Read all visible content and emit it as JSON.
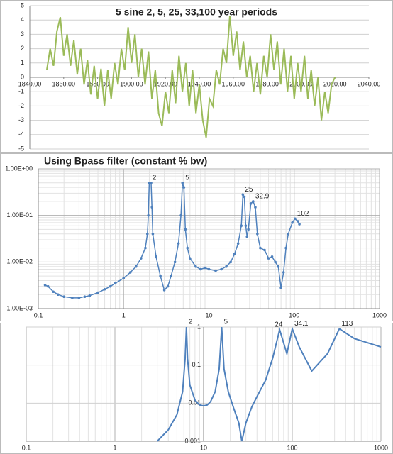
{
  "chart_data": [
    {
      "type": "line",
      "title": "5 sine 2, 5, 25, 33,100 year periods",
      "color": "#9bbb59",
      "xlim": [
        1840,
        2040
      ],
      "xticks": [
        {
          "value": 1840,
          "label": "1840.00"
        },
        {
          "value": 1860,
          "label": "1860.00"
        },
        {
          "value": 1880,
          "label": "1880.00"
        },
        {
          "value": 1900,
          "label": "1900.00"
        },
        {
          "value": 1920,
          "label": "1920.00"
        },
        {
          "value": 1940,
          "label": "1940.00"
        },
        {
          "value": 1960,
          "label": "1960.00"
        },
        {
          "value": 1980,
          "label": "1980.00"
        },
        {
          "value": 2000,
          "label": "2000.00"
        },
        {
          "value": 2020,
          "label": "2020.00"
        },
        {
          "value": 2040,
          "label": "2040.00"
        }
      ],
      "ylim": [
        -5,
        5
      ],
      "yticks": [
        -5,
        -4,
        -3,
        -2,
        -1,
        0,
        1,
        2,
        3,
        4,
        5
      ],
      "x_axis_crosses": 0,
      "grid_x": "none",
      "grid_y": "major",
      "log_x": false,
      "log_y": false,
      "markers": false,
      "x": [
        1850,
        1852,
        1854,
        1856,
        1858,
        1860,
        1862,
        1864,
        1866,
        1868,
        1870,
        1872,
        1874,
        1876,
        1878,
        1880,
        1882,
        1884,
        1886,
        1888,
        1890,
        1892,
        1894,
        1896,
        1898,
        1900,
        1902,
        1904,
        1906,
        1908,
        1910,
        1912,
        1914,
        1916,
        1918,
        1920,
        1922,
        1924,
        1926,
        1928,
        1930,
        1932,
        1934,
        1936,
        1938,
        1940,
        1942,
        1944,
        1946,
        1948,
        1950,
        1952,
        1954,
        1956,
        1958,
        1960,
        1962,
        1964,
        1966,
        1968,
        1970,
        1972,
        1974,
        1976,
        1978,
        1980,
        1982,
        1984,
        1986,
        1988,
        1990,
        1992,
        1994,
        1996,
        1998,
        2000,
        2002,
        2004,
        2006,
        2008,
        2010,
        2012,
        2014,
        2016,
        2018,
        2020
      ],
      "values": [
        0.5,
        2.0,
        0.8,
        3.2,
        4.2,
        1.5,
        3.0,
        0.8,
        2.6,
        0.2,
        2.0,
        -0.5,
        1.2,
        -1.2,
        0.8,
        -1.5,
        0.6,
        -2.0,
        0.5,
        -1.5,
        1.0,
        -0.5,
        2.0,
        0.5,
        3.5,
        1.0,
        3.0,
        0.0,
        2.0,
        -0.5,
        1.8,
        -1.5,
        0.5,
        -2.5,
        -3.4,
        -1.0,
        -2.5,
        0.5,
        -1.8,
        1.5,
        -1.0,
        1.0,
        -2.0,
        0.5,
        -2.5,
        -0.5,
        -3.0,
        -4.2,
        -1.5,
        -2.0,
        0.5,
        -0.5,
        2.0,
        1.0,
        4.3,
        1.5,
        3.2,
        0.5,
        2.5,
        0.0,
        1.5,
        -1.0,
        1.0,
        -1.2,
        1.5,
        0.0,
        3.0,
        0.5,
        2.5,
        -0.5,
        2.0,
        -1.0,
        1.5,
        -1.5,
        1.0,
        -1.0,
        1.5,
        -1.5,
        0.5,
        -2.0,
        0.0,
        -3.0,
        -1.0,
        -2.5,
        -0.5,
        0.0
      ]
    },
    {
      "type": "line",
      "title": "Using Bpass filter (constant % bw)",
      "color": "#4f81bd",
      "xlim": [
        0.1,
        1000
      ],
      "xticks": [
        0.1,
        1,
        10,
        100,
        1000
      ],
      "ylim": [
        0.001,
        1
      ],
      "yticks": [
        {
          "value": 0.001,
          "label": "1.00E-03"
        },
        {
          "value": 0.01,
          "label": "1.00E-02"
        },
        {
          "value": 0.1,
          "label": "1.00E-01"
        },
        {
          "value": 1,
          "label": "1.00E+00"
        }
      ],
      "grid_x": "minor",
      "grid_y": "minor",
      "log_x": true,
      "log_y": true,
      "markers": true,
      "x": [
        0.12,
        0.13,
        0.15,
        0.17,
        0.2,
        0.25,
        0.3,
        0.35,
        0.4,
        0.5,
        0.6,
        0.7,
        0.8,
        1.0,
        1.2,
        1.4,
        1.6,
        1.8,
        1.9,
        1.95,
        2.0,
        2.1,
        2.15,
        2.2,
        2.4,
        2.7,
        3.0,
        3.3,
        3.6,
        4.0,
        4.4,
        4.7,
        4.9,
        5.1,
        5.3,
        5.6,
        6,
        7,
        8,
        9,
        10,
        12,
        14,
        16,
        18,
        20,
        22,
        24,
        25,
        26,
        27,
        28,
        29,
        31,
        33,
        35,
        37,
        40,
        45,
        50,
        55,
        60,
        65,
        70,
        75,
        80,
        85,
        95,
        102,
        110,
        115
      ],
      "values": [
        0.0032,
        0.003,
        0.0023,
        0.002,
        0.0018,
        0.0017,
        0.0017,
        0.0018,
        0.0019,
        0.0022,
        0.0026,
        0.003,
        0.0035,
        0.0045,
        0.006,
        0.008,
        0.012,
        0.02,
        0.04,
        0.1,
        0.5,
        0.5,
        0.15,
        0.04,
        0.013,
        0.005,
        0.0025,
        0.003,
        0.005,
        0.01,
        0.025,
        0.1,
        0.5,
        0.4,
        0.05,
        0.02,
        0.012,
        0.008,
        0.007,
        0.0075,
        0.007,
        0.0065,
        0.007,
        0.008,
        0.01,
        0.015,
        0.025,
        0.06,
        0.28,
        0.25,
        0.06,
        0.035,
        0.05,
        0.18,
        0.2,
        0.15,
        0.04,
        0.02,
        0.018,
        0.012,
        0.013,
        0.01,
        0.008,
        0.0028,
        0.006,
        0.02,
        0.04,
        0.07,
        0.085,
        0.075,
        0.065
      ],
      "annotations": [
        {
          "text": "2",
          "x": 2.05,
          "y": 0.5
        },
        {
          "text": "5",
          "x": 5,
          "y": 0.5
        },
        {
          "text": "25",
          "x": 25,
          "y": 0.28
        },
        {
          "text": "32.9",
          "x": 33,
          "y": 0.2
        },
        {
          "text": "102",
          "x": 102,
          "y": 0.085
        }
      ]
    },
    {
      "type": "line",
      "color": "#4f81bd",
      "xlim": [
        0.1,
        1000
      ],
      "xticks": [
        0.1,
        1,
        10,
        100,
        1000
      ],
      "ylim": [
        0.001,
        1
      ],
      "yticks": [
        0.001,
        0.01,
        0.1,
        1
      ],
      "y_axis_crosses": 10,
      "grid_x": "minor",
      "grid_y": "major",
      "log_x": true,
      "log_y": true,
      "markers": false,
      "x": [
        3,
        4,
        5,
        5.8,
        6.2,
        6.4,
        6.6,
        7,
        8,
        9,
        10,
        11,
        12,
        13.5,
        15,
        16,
        17,
        19,
        22,
        25,
        27,
        30,
        35,
        40,
        50,
        60,
        72,
        87,
        100,
        120,
        166,
        250,
        340,
        500,
        1000
      ],
      "values": [
        0.001,
        0.002,
        0.005,
        0.02,
        0.15,
        1,
        0.15,
        0.03,
        0.012,
        0.009,
        0.0085,
        0.009,
        0.011,
        0.02,
        0.08,
        1,
        0.08,
        0.02,
        0.007,
        0.003,
        0.001,
        0.003,
        0.008,
        0.015,
        0.04,
        0.15,
        0.85,
        0.2,
        0.9,
        0.3,
        0.07,
        0.2,
        0.9,
        0.5,
        0.3
      ],
      "annotations": [
        {
          "text": "2",
          "x": 6.4,
          "y": 1
        },
        {
          "text": "5",
          "x": 16,
          "y": 1
        },
        {
          "text": "24",
          "x": 60,
          "y": 0.85
        },
        {
          "text": "34.1",
          "x": 100,
          "y": 0.9
        },
        {
          "text": "113",
          "x": 340,
          "y": 0.9
        }
      ]
    }
  ]
}
